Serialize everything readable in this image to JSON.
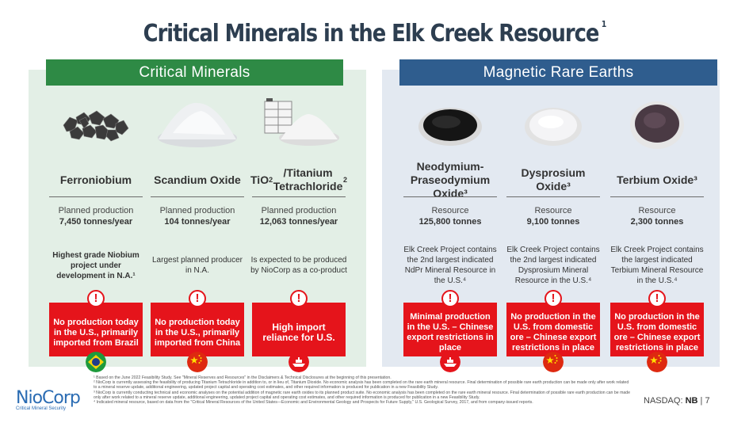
{
  "title": "Critical Minerals in the Elk Creek Resource",
  "title_sup": "1",
  "banners": {
    "critical": "Critical Minerals",
    "magnetic": "Magnetic Rare Earths"
  },
  "columns": [
    {
      "name": "Ferroniobium",
      "prod_label": "Planned production",
      "prod_value": "7,450 tonnes/year",
      "desc": "Highest grade Niobium project under development in N.A.¹",
      "alert": "No production today in the U.S., primarily imported from Brazil",
      "flag": "brazil-flag"
    },
    {
      "name": "Scandium Oxide",
      "prod_label": "Planned production",
      "prod_value": "104 tonnes/year",
      "desc": "Largest planned producer in N.A.",
      "alert": "No production today in the U.S., primarily imported from China",
      "flag": "china-flag"
    },
    {
      "name_html_parts": [
        "TiO",
        "2",
        "/Titanium Tetrachloride",
        "2"
      ],
      "prod_label": "Planned production",
      "prod_value": "12,063 tonnes/year",
      "desc": "Is expected to be produced by NioCorp as a co-product",
      "alert": "High import reliance for U.S.",
      "flag": "ship-icon"
    },
    {
      "name": "Neodymium-Praseodymium Oxide³",
      "prod_label": "Resource",
      "prod_value": "125,800 tonnes",
      "desc": "Elk Creek Project contains the 2nd largest indicated NdPr Mineral Resource in the U.S.⁴",
      "alert": "Minimal production in the U.S. – Chinese export restrictions in place",
      "flag": "ship-icon"
    },
    {
      "name": "Dysprosium Oxide³",
      "prod_label": "Resource",
      "prod_value": "9,100 tonnes",
      "desc": "Elk Creek Project contains the 2nd largest indicated Dysprosium Mineral Resource in the U.S.⁴",
      "alert": "No production in the U.S. from domestic ore – Chinese export restrictions in place",
      "flag": "china-flag"
    },
    {
      "name": "Terbium Oxide³",
      "prod_label": "Resource",
      "prod_value": "2,300 tonnes",
      "desc": "Elk Creek Project contains the largest indicated Terbium Mineral Resource in the U.S.⁴",
      "alert": "No production in the U.S. from domestic ore – Chinese export restrictions in place",
      "flag": "china-flag"
    }
  ],
  "alert_glyph": "!",
  "footnotes": [
    "¹ Based on the June 2022 Feasibility Study. See \"Mineral Reserves and Resources\" in the Disclaimers & Technical Disclosures at the beginning of this presentation.",
    "² NioCorp is currently assessing the feasibility of producing Titanium Tetrachloride in addition to, or in lieu of, Titanium Dioxide. No economic analysis has been completed on the rare earth mineral resource. Final determination of possible rare earth production can be made only after work related to a mineral reserve update, additional engineering, updated project capital and operating cost estimates, and other required information is produced for publication in a new Feasibility Study.",
    "³ NioCorp is currently conducting technical and economic analyses on the potential addition of magnetic rare earth oxides to its planned product suite. No economic analysis has been completed on the rare earth mineral resource. Final determination of possible rare earth production can be made only after work related to a mineral reserve update, additional engineering, updated project capital and operating cost estimates, and other required information is produced for publication in a new Feasibility Study.",
    "⁴ Indicated mineral resource, based on data from the \"Critical Mineral Resources of the United States—Economic and Environmental Geology and Prospects for Future Supply,\" U.S. Geological Survey, 2017, and from company-issued reports."
  ],
  "logo": {
    "name": "NioCorp",
    "tagline": "Critical Mineral Security"
  },
  "nasdaq": {
    "label": "NASDAQ:",
    "ticker": "NB",
    "separator": "|",
    "page": "7"
  },
  "colors": {
    "green": "#2e8a45",
    "blue": "#2f5d8e",
    "red": "#e5141b",
    "title": "#2d3e50"
  }
}
